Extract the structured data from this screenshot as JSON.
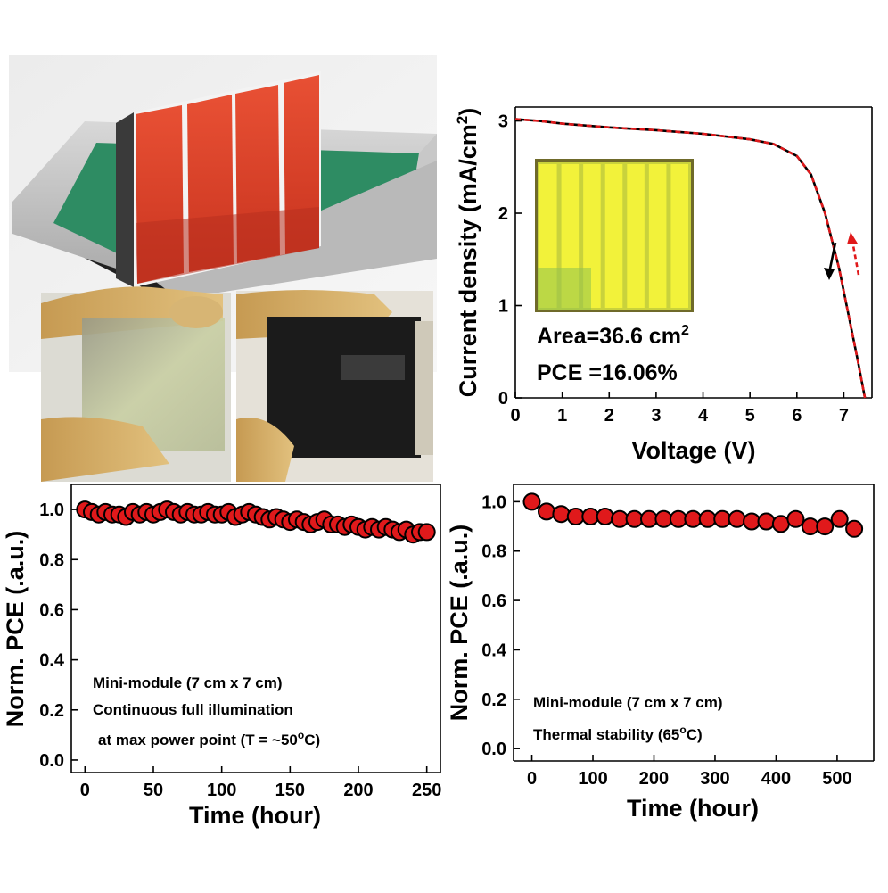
{
  "illustration": {
    "substrate_color": "#e2492c",
    "bath_fill_color": "#2e8c63",
    "film_clear_color": "#cdd5a2",
    "film_dark_color": "#1b1b1b"
  },
  "chart_data": [
    {
      "type": "line",
      "xlabel": "Voltage (V)",
      "ylabel_main": "Current density (mA/cm",
      "ylabel_sup": "2",
      "ylabel_tail": ")",
      "xlim": [
        0,
        7.6
      ],
      "ylim": [
        0,
        3.15
      ],
      "xticks": [
        0,
        1,
        2,
        3,
        4,
        5,
        6,
        7
      ],
      "yticks": [
        0,
        1,
        2,
        3
      ],
      "series": [
        {
          "color": "#000000",
          "style": "solid",
          "x": [
            0,
            0.5,
            1,
            2,
            3,
            4,
            5,
            5.5,
            6,
            6.3,
            6.6,
            6.9,
            7.1,
            7.3,
            7.45
          ],
          "y": [
            3.02,
            3.0,
            2.97,
            2.93,
            2.9,
            2.86,
            2.8,
            2.75,
            2.62,
            2.42,
            2.0,
            1.4,
            0.9,
            0.4,
            0.0
          ]
        },
        {
          "color": "#e0191b",
          "style": "dashed",
          "x": [
            0,
            0.5,
            1,
            2,
            3,
            4,
            5,
            5.5,
            6,
            6.3,
            6.6,
            6.9,
            7.1,
            7.3,
            7.45
          ],
          "y": [
            3.02,
            3.0,
            2.97,
            2.93,
            2.9,
            2.86,
            2.8,
            2.75,
            2.62,
            2.42,
            2.0,
            1.4,
            0.9,
            0.4,
            0.0
          ]
        }
      ],
      "annotations": {
        "area_text": "Area=36.6 cm",
        "area_sup": "2",
        "pce_text": "PCE =16.06%"
      },
      "inset_cells": 7
    },
    {
      "type": "scatter",
      "xlabel": "Time (hour)",
      "ylabel": "Norm. PCE (.a.u.)",
      "xlim": [
        -10,
        260
      ],
      "ylim": [
        -0.05,
        1.1
      ],
      "xticks": [
        0,
        50,
        100,
        150,
        200,
        250
      ],
      "yticks": [
        "0.0",
        "0.2",
        "0.4",
        "0.6",
        "0.8",
        "1.0"
      ],
      "marker_color": "#e0191b",
      "x": [
        0,
        5,
        10,
        15,
        20,
        25,
        30,
        35,
        40,
        45,
        50,
        55,
        60,
        65,
        70,
        75,
        80,
        85,
        90,
        95,
        100,
        105,
        110,
        115,
        120,
        125,
        130,
        135,
        140,
        145,
        150,
        155,
        160,
        165,
        170,
        175,
        180,
        185,
        190,
        195,
        200,
        205,
        210,
        215,
        220,
        225,
        230,
        235,
        240,
        245,
        250
      ],
      "y": [
        1.0,
        0.99,
        0.98,
        0.99,
        0.98,
        0.98,
        0.97,
        0.99,
        0.98,
        0.99,
        0.98,
        0.99,
        1.0,
        0.99,
        0.98,
        0.99,
        0.98,
        0.98,
        0.99,
        0.98,
        0.98,
        0.99,
        0.97,
        0.98,
        0.99,
        0.98,
        0.97,
        0.96,
        0.97,
        0.96,
        0.95,
        0.96,
        0.95,
        0.94,
        0.95,
        0.96,
        0.94,
        0.94,
        0.93,
        0.94,
        0.93,
        0.92,
        0.93,
        0.92,
        0.93,
        0.92,
        0.91,
        0.92,
        0.9,
        0.91,
        0.91
      ],
      "notes": [
        "Mini-module (7 cm x 7 cm)",
        "Continuous full illumination"
      ],
      "note3_pre": "at max power point (T = ~50",
      "note3_sup": "o",
      "note3_post": "C)"
    },
    {
      "type": "scatter",
      "xlabel": "Time (hour)",
      "ylabel": "Norm. PCE (.a.u.)",
      "xlim": [
        -30,
        560
      ],
      "ylim": [
        -0.05,
        1.07
      ],
      "xticks": [
        0,
        100,
        200,
        300,
        400,
        500
      ],
      "yticks": [
        "0.0",
        "0.2",
        "0.4",
        "0.6",
        "0.8",
        "1.0"
      ],
      "marker_color": "#e0191b",
      "x": [
        0,
        24,
        48,
        72,
        96,
        120,
        144,
        168,
        192,
        216,
        240,
        264,
        288,
        312,
        336,
        360,
        384,
        408,
        432,
        456,
        480,
        504,
        528
      ],
      "y": [
        1.0,
        0.96,
        0.95,
        0.94,
        0.94,
        0.94,
        0.93,
        0.93,
        0.93,
        0.93,
        0.93,
        0.93,
        0.93,
        0.93,
        0.93,
        0.92,
        0.92,
        0.91,
        0.93,
        0.9,
        0.9,
        0.93,
        0.89
      ],
      "note1": "Mini-module (7 cm x 7 cm)",
      "note2_pre": "Thermal stability (65",
      "note2_sup": "o",
      "note2_post": "C)"
    }
  ]
}
